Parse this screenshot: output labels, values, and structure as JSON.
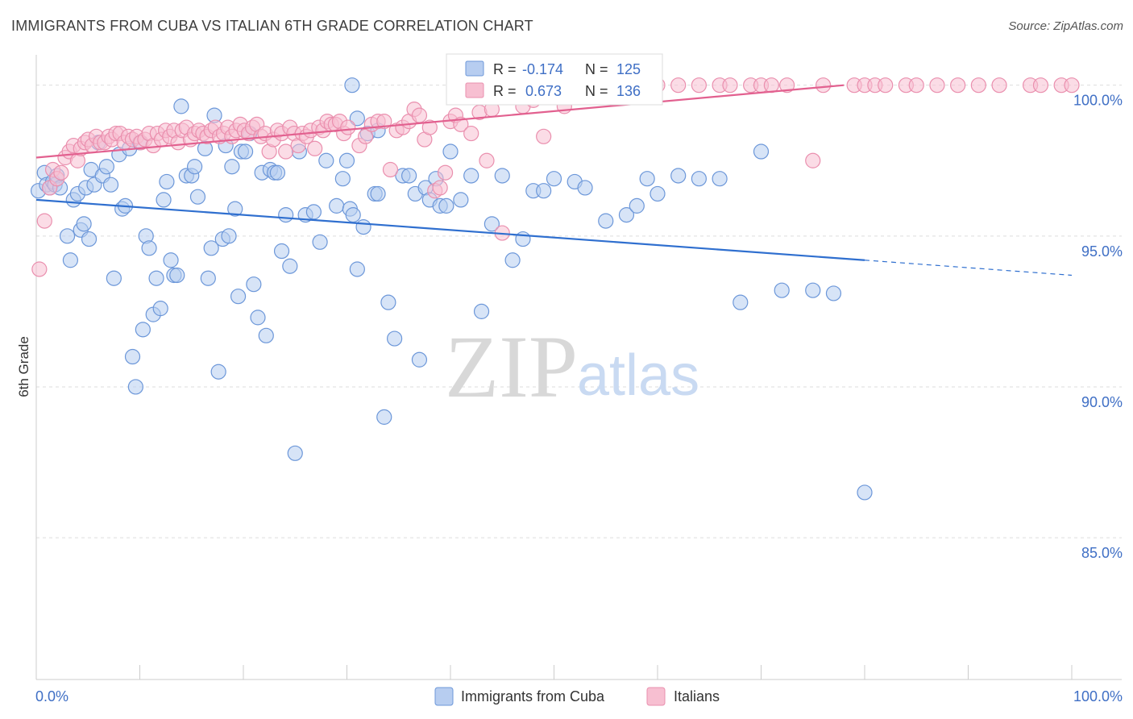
{
  "title": "IMMIGRANTS FROM CUBA VS ITALIAN 6TH GRADE CORRELATION CHART",
  "source_prefix": "Source: ",
  "source_name": "ZipAtlas.com",
  "watermark": {
    "zip": "ZIP",
    "atlas": "atlas"
  },
  "colors": {
    "blue_fill": "#b7cdf0",
    "blue_stroke": "#6c97d9",
    "blue_line": "#2f6fcf",
    "pink_fill": "#f7bfd1",
    "pink_stroke": "#ea8fae",
    "pink_line": "#e2608f",
    "grid": "#dedede",
    "axis_text": "#3f6fc5"
  },
  "stats": {
    "blue": {
      "r_label": "R = ",
      "r_value": "-0.174",
      "n_label": "N = ",
      "n_value": "125"
    },
    "pink": {
      "r_label": "R = ",
      "r_value": "0.673",
      "n_label": "N = ",
      "n_value": "136"
    }
  },
  "legend": {
    "blue": "Immigrants from Cuba",
    "pink": "Italians"
  },
  "chart_data": {
    "type": "scatter",
    "title": "IMMIGRANTS FROM CUBA VS ITALIAN 6TH GRADE CORRELATION CHART",
    "xlabel": "",
    "ylabel": "6th Grade",
    "xlim": [
      0,
      100
    ],
    "ylim": [
      80.3,
      100.9
    ],
    "x_tick_labels": [
      "0.0%",
      "100.0%"
    ],
    "y_ticks": [
      85,
      90,
      95,
      100
    ],
    "y_tick_labels": [
      "85.0%",
      "90.0%",
      "95.0%",
      "100.0%"
    ],
    "series": [
      {
        "name": "Immigrants from Cuba",
        "color": "blue",
        "R": -0.174,
        "N": 125,
        "trend": {
          "x0": 0,
          "y0": 96.2,
          "x1": 80,
          "y1": 94.2,
          "dash_x1": 100,
          "dash_y1": 93.7
        },
        "points": [
          [
            0.2,
            96.5
          ],
          [
            0.8,
            97.1
          ],
          [
            1.0,
            96.7
          ],
          [
            1.3,
            96.6
          ],
          [
            1.6,
            96.8
          ],
          [
            1.8,
            96.7
          ],
          [
            2.0,
            97.0
          ],
          [
            2.3,
            96.6
          ],
          [
            3.0,
            95.0
          ],
          [
            3.3,
            94.2
          ],
          [
            3.6,
            96.2
          ],
          [
            4.0,
            96.4
          ],
          [
            4.3,
            95.2
          ],
          [
            4.6,
            95.4
          ],
          [
            4.8,
            96.6
          ],
          [
            5.1,
            94.9
          ],
          [
            5.3,
            97.2
          ],
          [
            5.6,
            96.7
          ],
          [
            6.0,
            98.1
          ],
          [
            6.4,
            97.0
          ],
          [
            6.8,
            97.3
          ],
          [
            7.2,
            96.7
          ],
          [
            7.5,
            93.6
          ],
          [
            8.0,
            97.7
          ],
          [
            8.3,
            95.9
          ],
          [
            8.6,
            96.0
          ],
          [
            9.0,
            97.9
          ],
          [
            9.3,
            91.0
          ],
          [
            9.6,
            90.0
          ],
          [
            10.0,
            98.1
          ],
          [
            10.3,
            91.9
          ],
          [
            10.6,
            95.0
          ],
          [
            10.9,
            94.6
          ],
          [
            11.3,
            92.4
          ],
          [
            11.6,
            93.6
          ],
          [
            12.0,
            92.6
          ],
          [
            12.3,
            96.2
          ],
          [
            12.6,
            96.8
          ],
          [
            13.0,
            94.2
          ],
          [
            13.3,
            93.7
          ],
          [
            13.6,
            93.7
          ],
          [
            14.0,
            99.3
          ],
          [
            14.5,
            97.0
          ],
          [
            15.0,
            97.0
          ],
          [
            15.3,
            97.3
          ],
          [
            15.6,
            96.3
          ],
          [
            16.3,
            97.9
          ],
          [
            16.6,
            93.6
          ],
          [
            16.9,
            94.6
          ],
          [
            17.2,
            99.0
          ],
          [
            17.6,
            90.5
          ],
          [
            18.0,
            94.9
          ],
          [
            18.3,
            98.0
          ],
          [
            18.6,
            95.0
          ],
          [
            18.9,
            97.3
          ],
          [
            19.2,
            95.9
          ],
          [
            19.5,
            93.0
          ],
          [
            19.8,
            97.8
          ],
          [
            20.2,
            97.8
          ],
          [
            20.6,
            98.4
          ],
          [
            21.0,
            93.4
          ],
          [
            21.4,
            92.3
          ],
          [
            21.8,
            97.1
          ],
          [
            22.2,
            91.7
          ],
          [
            22.6,
            97.2
          ],
          [
            23.0,
            97.1
          ],
          [
            23.3,
            97.1
          ],
          [
            23.7,
            94.5
          ],
          [
            24.1,
            95.7
          ],
          [
            24.5,
            94.0
          ],
          [
            25.0,
            87.8
          ],
          [
            25.4,
            97.8
          ],
          [
            26.0,
            95.7
          ],
          [
            26.8,
            95.8
          ],
          [
            27.4,
            94.8
          ],
          [
            28.0,
            97.5
          ],
          [
            29.0,
            96.0
          ],
          [
            29.6,
            96.9
          ],
          [
            30.0,
            97.5
          ],
          [
            30.3,
            95.9
          ],
          [
            30.6,
            95.7
          ],
          [
            31.0,
            93.9
          ],
          [
            31.6,
            95.3
          ],
          [
            32.0,
            98.4
          ],
          [
            32.7,
            96.4
          ],
          [
            33.0,
            96.4
          ],
          [
            33.6,
            89.0
          ],
          [
            34.0,
            92.8
          ],
          [
            34.6,
            91.6
          ],
          [
            35.4,
            97.0
          ],
          [
            36.0,
            97.0
          ],
          [
            36.6,
            96.4
          ],
          [
            37.0,
            90.9
          ],
          [
            37.6,
            96.6
          ],
          [
            38.0,
            96.2
          ],
          [
            38.6,
            96.9
          ],
          [
            39.0,
            96.0
          ],
          [
            39.6,
            96.0
          ],
          [
            40.0,
            97.8
          ],
          [
            41.0,
            96.2
          ],
          [
            42.0,
            97.0
          ],
          [
            43.0,
            92.5
          ],
          [
            44.0,
            95.4
          ],
          [
            45.0,
            97.0
          ],
          [
            46.0,
            94.2
          ],
          [
            47.0,
            94.9
          ],
          [
            48.0,
            96.5
          ],
          [
            49.0,
            96.5
          ],
          [
            50.0,
            96.9
          ],
          [
            52.0,
            96.8
          ],
          [
            53.0,
            96.6
          ],
          [
            55.0,
            95.5
          ],
          [
            57.0,
            95.7
          ],
          [
            58.0,
            96.0
          ],
          [
            59.0,
            96.9
          ],
          [
            60.0,
            96.4
          ],
          [
            62.0,
            97.0
          ],
          [
            64.0,
            96.9
          ],
          [
            66.0,
            96.9
          ],
          [
            68.0,
            92.8
          ],
          [
            70.0,
            97.8
          ],
          [
            72.0,
            93.2
          ],
          [
            75.0,
            93.2
          ],
          [
            77.0,
            93.1
          ],
          [
            80.0,
            86.5
          ],
          [
            30.5,
            100.0
          ],
          [
            31.0,
            98.9
          ],
          [
            33.0,
            98.5
          ]
        ]
      },
      {
        "name": "Italians",
        "color": "pink",
        "R": 0.673,
        "N": 136,
        "trend": {
          "x0": 0,
          "y0": 97.6,
          "x1": 78,
          "y1": 100.0
        },
        "points": [
          [
            0.3,
            93.9
          ],
          [
            0.8,
            95.5
          ],
          [
            1.3,
            96.6
          ],
          [
            1.6,
            97.2
          ],
          [
            2.0,
            96.9
          ],
          [
            2.4,
            97.1
          ],
          [
            2.8,
            97.6
          ],
          [
            3.2,
            97.8
          ],
          [
            3.6,
            98.0
          ],
          [
            4.0,
            97.5
          ],
          [
            4.3,
            97.9
          ],
          [
            4.7,
            98.1
          ],
          [
            5.0,
            98.2
          ],
          [
            5.4,
            98.0
          ],
          [
            5.8,
            98.3
          ],
          [
            6.2,
            98.1
          ],
          [
            6.6,
            98.1
          ],
          [
            7.0,
            98.3
          ],
          [
            7.3,
            98.2
          ],
          [
            7.7,
            98.4
          ],
          [
            8.1,
            98.4
          ],
          [
            8.5,
            98.1
          ],
          [
            8.9,
            98.3
          ],
          [
            9.3,
            98.2
          ],
          [
            9.7,
            98.3
          ],
          [
            10.1,
            98.1
          ],
          [
            10.5,
            98.2
          ],
          [
            10.9,
            98.4
          ],
          [
            11.3,
            98.0
          ],
          [
            11.7,
            98.4
          ],
          [
            12.1,
            98.2
          ],
          [
            12.5,
            98.5
          ],
          [
            12.9,
            98.3
          ],
          [
            13.3,
            98.5
          ],
          [
            13.7,
            98.1
          ],
          [
            14.1,
            98.5
          ],
          [
            14.5,
            98.6
          ],
          [
            14.9,
            98.2
          ],
          [
            15.3,
            98.4
          ],
          [
            15.7,
            98.5
          ],
          [
            16.1,
            98.4
          ],
          [
            16.5,
            98.3
          ],
          [
            16.9,
            98.5
          ],
          [
            17.3,
            98.6
          ],
          [
            17.7,
            98.3
          ],
          [
            18.1,
            98.4
          ],
          [
            18.5,
            98.6
          ],
          [
            18.9,
            98.3
          ],
          [
            19.3,
            98.5
          ],
          [
            19.7,
            98.7
          ],
          [
            20.1,
            98.5
          ],
          [
            20.5,
            98.4
          ],
          [
            20.9,
            98.6
          ],
          [
            21.3,
            98.7
          ],
          [
            21.7,
            98.3
          ],
          [
            22.1,
            98.4
          ],
          [
            22.5,
            97.8
          ],
          [
            22.9,
            98.2
          ],
          [
            23.3,
            98.5
          ],
          [
            23.7,
            98.4
          ],
          [
            24.1,
            97.8
          ],
          [
            24.5,
            98.6
          ],
          [
            24.9,
            98.4
          ],
          [
            25.3,
            98.0
          ],
          [
            25.7,
            98.4
          ],
          [
            26.1,
            98.3
          ],
          [
            26.5,
            98.5
          ],
          [
            26.9,
            97.9
          ],
          [
            27.3,
            98.6
          ],
          [
            27.7,
            98.5
          ],
          [
            28.1,
            98.8
          ],
          [
            28.5,
            98.7
          ],
          [
            28.9,
            98.7
          ],
          [
            29.3,
            98.8
          ],
          [
            29.7,
            98.4
          ],
          [
            30.1,
            98.6
          ],
          [
            31.2,
            98.0
          ],
          [
            31.8,
            98.3
          ],
          [
            32.4,
            98.7
          ],
          [
            33.0,
            98.8
          ],
          [
            33.6,
            98.8
          ],
          [
            34.2,
            97.2
          ],
          [
            34.8,
            98.5
          ],
          [
            35.4,
            98.6
          ],
          [
            36.0,
            98.8
          ],
          [
            36.5,
            99.2
          ],
          [
            37.0,
            99.0
          ],
          [
            37.5,
            98.2
          ],
          [
            38.0,
            98.6
          ],
          [
            38.5,
            96.5
          ],
          [
            39.0,
            96.6
          ],
          [
            39.5,
            97.1
          ],
          [
            40.0,
            98.8
          ],
          [
            40.5,
            99.0
          ],
          [
            41.0,
            98.7
          ],
          [
            42.0,
            98.4
          ],
          [
            42.8,
            99.1
          ],
          [
            43.5,
            97.5
          ],
          [
            44.0,
            99.2
          ],
          [
            45.0,
            95.1
          ],
          [
            46.0,
            99.6
          ],
          [
            47.0,
            99.3
          ],
          [
            48.0,
            99.5
          ],
          [
            49.0,
            98.3
          ],
          [
            50.0,
            99.6
          ],
          [
            51.0,
            99.3
          ],
          [
            52.0,
            100.0
          ],
          [
            53.0,
            100.0
          ],
          [
            54.0,
            99.8
          ],
          [
            55.0,
            99.9
          ],
          [
            56.0,
            100.0
          ],
          [
            57.0,
            99.8
          ],
          [
            58.0,
            99.9
          ],
          [
            60.0,
            100.0
          ],
          [
            62.0,
            100.0
          ],
          [
            64.0,
            100.0
          ],
          [
            66.0,
            100.0
          ],
          [
            67.0,
            100.0
          ],
          [
            69.0,
            100.0
          ],
          [
            70.0,
            100.0
          ],
          [
            71.0,
            100.0
          ],
          [
            72.5,
            100.0
          ],
          [
            75.0,
            97.5
          ],
          [
            76.0,
            100.0
          ],
          [
            79.0,
            100.0
          ],
          [
            80.0,
            100.0
          ],
          [
            81.0,
            100.0
          ],
          [
            82.0,
            100.0
          ],
          [
            84.0,
            100.0
          ],
          [
            85.0,
            100.0
          ],
          [
            87.0,
            100.0
          ],
          [
            89.0,
            100.0
          ],
          [
            93.0,
            100.0
          ],
          [
            96.0,
            100.0
          ],
          [
            97.0,
            100.0
          ],
          [
            99.0,
            100.0
          ],
          [
            100.0,
            100.0
          ],
          [
            91.0,
            100.0
          ]
        ]
      }
    ]
  }
}
